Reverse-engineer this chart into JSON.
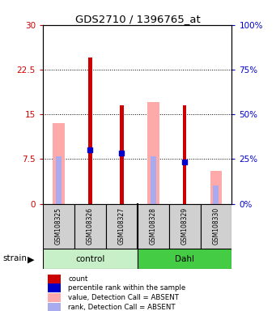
{
  "title": "GDS2710 / 1396765_at",
  "samples": [
    "GSM108325",
    "GSM108326",
    "GSM108327",
    "GSM108328",
    "GSM108329",
    "GSM108330"
  ],
  "groups": [
    "control",
    "control",
    "control",
    "Dahl",
    "Dahl",
    "Dahl"
  ],
  "group_colors": {
    "control": "#c8f0c8",
    "Dahl": "#44cc44"
  },
  "ylim_left": [
    0,
    30
  ],
  "ylim_right": [
    0,
    100
  ],
  "yticks_left": [
    0,
    7.5,
    15,
    22.5,
    30
  ],
  "yticks_right": [
    0,
    25,
    50,
    75,
    100
  ],
  "ytick_labels_left": [
    "0",
    "7.5",
    "15",
    "22.5",
    "30"
  ],
  "ytick_labels_right": [
    "0%",
    "25%",
    "50%",
    "75%",
    "100%"
  ],
  "count_values": [
    null,
    24.5,
    16.5,
    null,
    16.5,
    null
  ],
  "percentile_values": [
    null,
    9.0,
    8.5,
    null,
    7.0,
    null
  ],
  "absent_value_values": [
    13.5,
    null,
    null,
    17.0,
    null,
    5.5
  ],
  "absent_rank_values": [
    8.0,
    null,
    null,
    8.0,
    null,
    3.0
  ],
  "count_color": "#cc0000",
  "percentile_color": "#0000cc",
  "absent_value_color": "#ffaaaa",
  "absent_rank_color": "#aaaaee",
  "left_axis_color": "#cc0000",
  "right_axis_color": "#0000cc",
  "label_area_color": "#d0d0d0",
  "legend_items": [
    {
      "label": "count",
      "color": "#cc0000"
    },
    {
      "label": "percentile rank within the sample",
      "color": "#0000cc"
    },
    {
      "label": "value, Detection Call = ABSENT",
      "color": "#ffaaaa"
    },
    {
      "label": "rank, Detection Call = ABSENT",
      "color": "#aaaaee"
    }
  ]
}
